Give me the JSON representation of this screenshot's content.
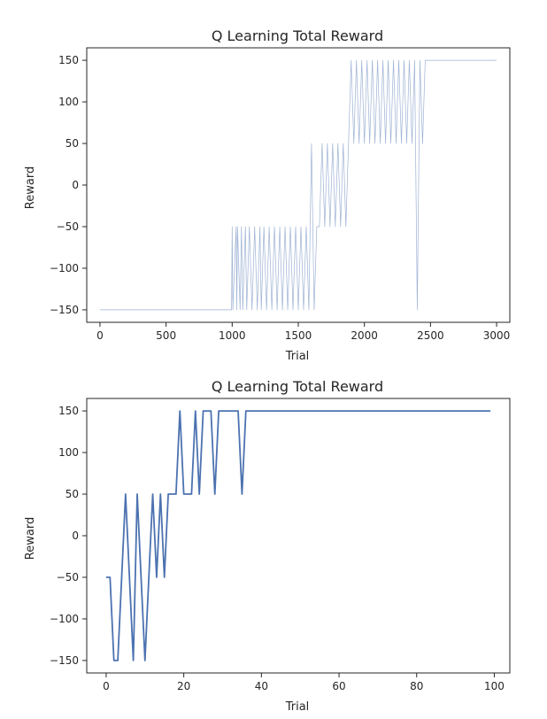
{
  "chart_data": [
    {
      "type": "line",
      "title": "Q Learning Total Reward",
      "xlabel": "Trial",
      "ylabel": "Reward",
      "xlim": [
        -100,
        3100
      ],
      "ylim": [
        -165,
        165
      ],
      "xticks": [
        0,
        500,
        1000,
        1500,
        2000,
        2500,
        3000
      ],
      "xtick_labels": [
        "0",
        "500",
        "1000",
        "1500",
        "2000",
        "2500",
        "3000"
      ],
      "yticks": [
        -150,
        -100,
        -50,
        0,
        50,
        100,
        150
      ],
      "ytick_labels": [
        "−150",
        "−100",
        "−50",
        "0",
        "50",
        "100",
        "150"
      ],
      "grid": false,
      "legend": "none",
      "color": "#4c72b0",
      "series": [
        {
          "x": [
            0,
            995,
            1000,
            1005,
            1030,
            1035,
            1040,
            1060,
            1070,
            1080,
            1100,
            1110,
            1130,
            1150,
            1170,
            1190,
            1210,
            1220,
            1240,
            1260,
            1280,
            1300,
            1320,
            1340,
            1360,
            1380,
            1400,
            1420,
            1440,
            1460,
            1480,
            1500,
            1520,
            1540,
            1560,
            1580,
            1600,
            1610,
            1620,
            1640,
            1660,
            1680,
            1700,
            1720,
            1740,
            1760,
            1780,
            1800,
            1820,
            1840,
            1860,
            1880,
            1900,
            1920,
            1940,
            1960,
            1980,
            2000,
            2020,
            2040,
            2060,
            2080,
            2100,
            2120,
            2140,
            2160,
            2180,
            2200,
            2220,
            2240,
            2260,
            2280,
            2300,
            2320,
            2340,
            2360,
            2380,
            2400,
            2420,
            2440,
            2460,
            2480,
            3000
          ],
          "y": [
            -150,
            -150,
            -50,
            -150,
            -50,
            -150,
            -50,
            -150,
            -50,
            -150,
            -50,
            -150,
            -50,
            -150,
            -50,
            -150,
            -50,
            -150,
            -50,
            -150,
            -50,
            -150,
            -50,
            -150,
            -50,
            -150,
            -50,
            -150,
            -50,
            -150,
            -50,
            -150,
            -50,
            -150,
            -50,
            -150,
            50,
            -50,
            -150,
            -50,
            -50,
            50,
            -50,
            50,
            -50,
            50,
            -50,
            50,
            -50,
            50,
            -50,
            50,
            150,
            50,
            150,
            50,
            150,
            50,
            150,
            50,
            150,
            50,
            150,
            50,
            150,
            50,
            150,
            50,
            150,
            50,
            150,
            50,
            150,
            50,
            150,
            50,
            150,
            -150,
            150,
            50,
            150,
            150,
            150
          ]
        }
      ]
    },
    {
      "type": "line",
      "title": "Q Learning Total Reward",
      "xlabel": "Trial",
      "ylabel": "Reward",
      "xlim": [
        -5,
        104
      ],
      "ylim": [
        -165,
        165
      ],
      "xticks": [
        0,
        20,
        40,
        60,
        80,
        100
      ],
      "xtick_labels": [
        "0",
        "20",
        "40",
        "60",
        "80",
        "100"
      ],
      "yticks": [
        -150,
        -100,
        -50,
        0,
        50,
        100,
        150
      ],
      "ytick_labels": [
        "−150",
        "−100",
        "−50",
        "0",
        "50",
        "100",
        "150"
      ],
      "grid": false,
      "legend": "none",
      "color": "#4c72b0",
      "series": [
        {
          "x": [
            0,
            1,
            2,
            3,
            4,
            5,
            6,
            7,
            8,
            9,
            10,
            11,
            12,
            13,
            14,
            15,
            16,
            17,
            18,
            19,
            20,
            21,
            22,
            23,
            24,
            25,
            26,
            27,
            28,
            29,
            30,
            31,
            32,
            33,
            34,
            35,
            36,
            37,
            38,
            39,
            40,
            41,
            42,
            43,
            44,
            45,
            46,
            47,
            48,
            49,
            50,
            51,
            52,
            53,
            54,
            55,
            56,
            57,
            58,
            59,
            60,
            61,
            62,
            63,
            64,
            65,
            66,
            67,
            68,
            69,
            70,
            71,
            72,
            73,
            74,
            75,
            76,
            77,
            78,
            79,
            80,
            81,
            82,
            83,
            84,
            85,
            86,
            87,
            88,
            89,
            90,
            91,
            92,
            93,
            94,
            95,
            96,
            97,
            98,
            99
          ],
          "y": [
            -50,
            -50,
            -150,
            -150,
            -50,
            50,
            -50,
            -150,
            50,
            -50,
            -150,
            -50,
            50,
            -50,
            50,
            -50,
            50,
            50,
            50,
            150,
            50,
            50,
            50,
            150,
            50,
            150,
            150,
            150,
            50,
            150,
            150,
            150,
            150,
            150,
            150,
            50,
            150,
            150,
            150,
            150,
            150,
            150,
            150,
            150,
            150,
            150,
            150,
            150,
            150,
            150,
            150,
            150,
            150,
            150,
            150,
            150,
            150,
            150,
            150,
            150,
            150,
            150,
            150,
            150,
            150,
            150,
            150,
            150,
            150,
            150,
            150,
            150,
            150,
            150,
            150,
            150,
            150,
            150,
            150,
            150,
            150,
            150,
            150,
            150,
            150,
            150,
            150,
            150,
            150,
            150,
            150,
            150,
            150,
            150,
            150,
            150,
            150,
            150,
            150,
            150
          ]
        }
      ]
    }
  ]
}
